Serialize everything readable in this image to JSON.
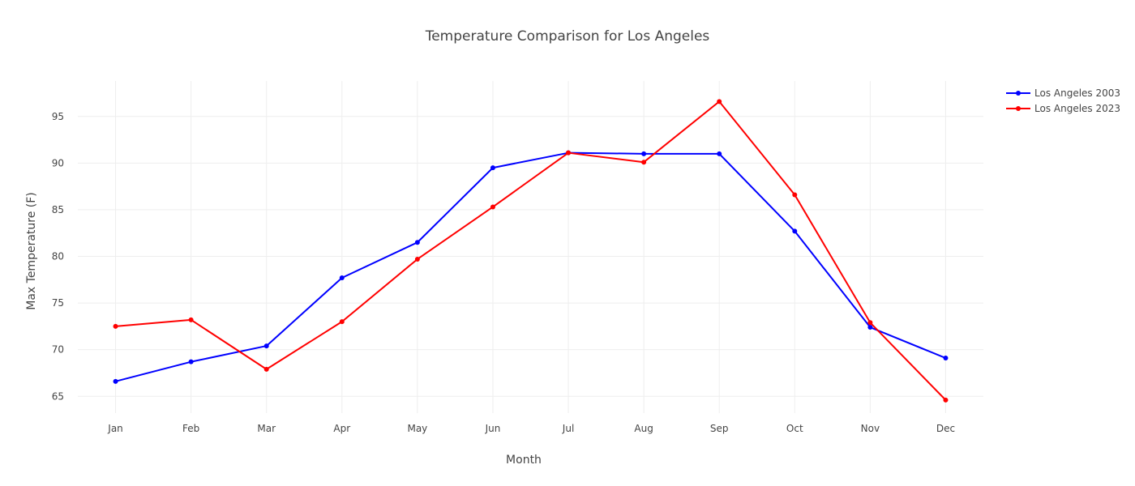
{
  "chart_data": {
    "type": "line",
    "title": "Temperature Comparison for Los Angeles",
    "xlabel": "Month",
    "ylabel": "Max Temperature (F)",
    "categories": [
      "Jan",
      "Feb",
      "Mar",
      "Apr",
      "May",
      "Jun",
      "Jul",
      "Aug",
      "Sep",
      "Oct",
      "Nov",
      "Dec"
    ],
    "ylim": [
      63.2,
      98.8
    ],
    "yticks": [
      65,
      70,
      75,
      80,
      85,
      90,
      95
    ],
    "grid": true,
    "legend_position": "top-right",
    "series": [
      {
        "name": "Los Angeles 2003",
        "color": "#0000ff",
        "values": [
          66.6,
          68.7,
          70.4,
          77.7,
          81.5,
          89.5,
          91.1,
          91.0,
          91.0,
          82.7,
          72.4,
          69.1
        ]
      },
      {
        "name": "Los Angeles 2023",
        "color": "#ff0000",
        "values": [
          72.5,
          73.2,
          67.9,
          73.0,
          79.7,
          85.3,
          91.1,
          90.1,
          96.6,
          86.6,
          72.9,
          64.6
        ]
      }
    ]
  }
}
